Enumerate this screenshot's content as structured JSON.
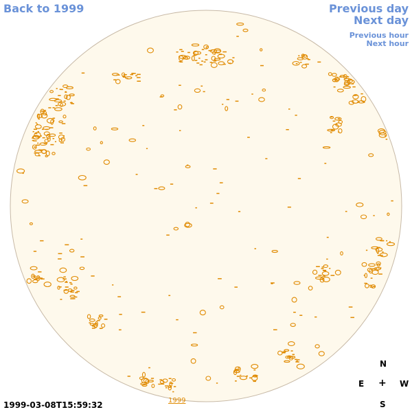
{
  "nav": {
    "back": "Back to 1999",
    "previous_day": "Previous day",
    "next_day": "Next day",
    "previous_hour": "Previous hour",
    "next_hour": "Next hour"
  },
  "footer": {
    "timestamp": "1999-03-08T15:59:32",
    "year_link": "1999"
  },
  "compass": {
    "north": "N",
    "east": "E",
    "center": "+",
    "west": "W",
    "south": "S"
  },
  "colors": {
    "disk_fill": "#fef9ec",
    "disk_edge": "#c7b9a6",
    "contour": "#e08a00",
    "link": "#6a92d8"
  }
}
